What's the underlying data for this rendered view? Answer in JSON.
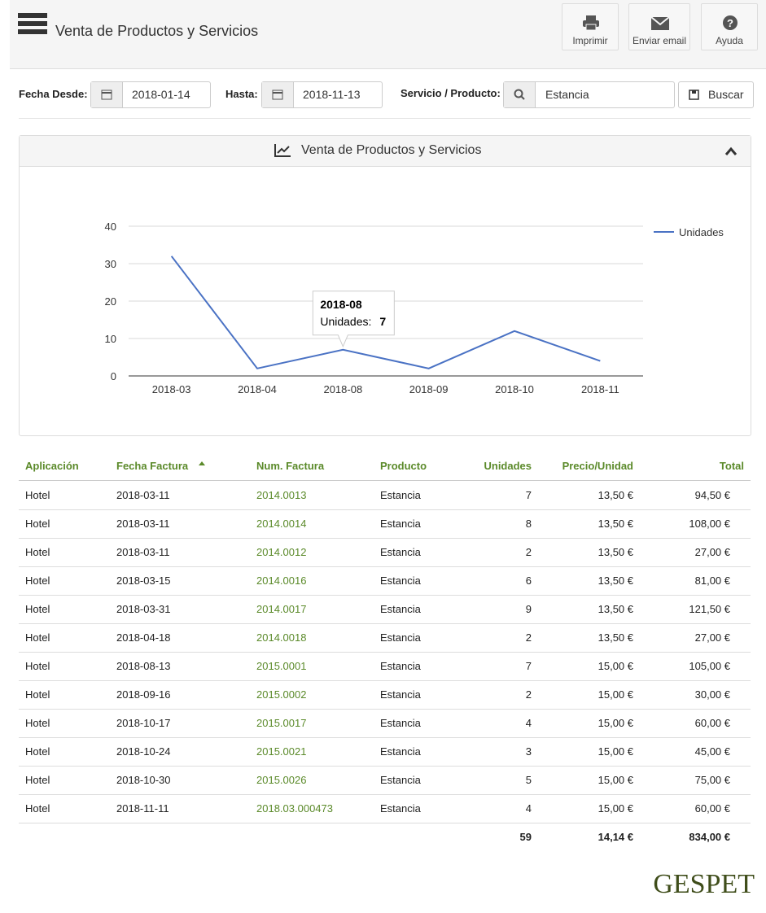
{
  "header": {
    "title": "Venta de Productos y Servicios",
    "buttons": [
      "Imprimir",
      "Enviar email",
      "Ayuda"
    ]
  },
  "filters": {
    "from_label": "Fecha Desde:",
    "from_value": "2018-01-14",
    "to_label": "Hasta:",
    "to_value": "2018-11-13",
    "product_label": "Servicio / Producto:",
    "product_value": "Estancia",
    "search_button": "Buscar"
  },
  "chart_data": {
    "type": "line",
    "title": "Venta de Productos y Servicios",
    "categories": [
      "2018-03",
      "2018-04",
      "2018-08",
      "2018-09",
      "2018-10",
      "2018-11"
    ],
    "series": [
      {
        "name": "Unidades",
        "color": "#4a72c4",
        "values": [
          32,
          2,
          7,
          2,
          12,
          4
        ]
      }
    ],
    "ylim": [
      0,
      40
    ],
    "yticks": [
      0,
      10,
      20,
      30,
      40
    ],
    "grid": true,
    "legend": "top-right",
    "tooltip": {
      "label": "Unidades:"
    }
  },
  "table": {
    "columns": [
      "Aplicación",
      "Fecha Factura",
      "Num. Factura",
      "Producto",
      "Unidades",
      "Precio/Unidad",
      "Total"
    ],
    "rows": [
      [
        "Hotel",
        "2018-03-11",
        "2014.0013",
        "Estancia",
        7,
        "13,50 €",
        "94,50 €"
      ],
      [
        "Hotel",
        "2018-03-11",
        "2014.0014",
        "Estancia",
        8,
        "13,50 €",
        "108,00 €"
      ],
      [
        "Hotel",
        "2018-03-11",
        "2014.0012",
        "Estancia",
        2,
        "13,50 €",
        "27,00 €"
      ],
      [
        "Hotel",
        "2018-03-15",
        "2014.0016",
        "Estancia",
        6,
        "13,50 €",
        "81,00 €"
      ],
      [
        "Hotel",
        "2018-03-31",
        "2014.0017",
        "Estancia",
        9,
        "13,50 €",
        "121,50 €"
      ],
      [
        "Hotel",
        "2018-04-18",
        "2014.0018",
        "Estancia",
        2,
        "13,50 €",
        "27,00 €"
      ],
      [
        "Hotel",
        "2018-08-13",
        "2015.0001",
        "Estancia",
        7,
        "15,00 €",
        "105,00 €"
      ],
      [
        "Hotel",
        "2018-09-16",
        "2015.0002",
        "Estancia",
        2,
        "15,00 €",
        "30,00 €"
      ],
      [
        "Hotel",
        "2018-10-17",
        "2015.0017",
        "Estancia",
        4,
        "15,00 €",
        "60,00 €"
      ],
      [
        "Hotel",
        "2018-10-24",
        "2015.0021",
        "Estancia",
        3,
        "15,00 €",
        "45,00 €"
      ],
      [
        "Hotel",
        "2018-10-30",
        "2015.0026",
        "Estancia",
        5,
        "15,00 €",
        "75,00 €"
      ],
      [
        "Hotel",
        "2018-11-11",
        "2018.03.000473",
        "Estancia",
        4,
        "15,00 €",
        "60,00 €"
      ]
    ],
    "totals": [
      59,
      "14,14 €",
      "834,00 €"
    ]
  },
  "footer": {
    "logo": "GESPET"
  }
}
